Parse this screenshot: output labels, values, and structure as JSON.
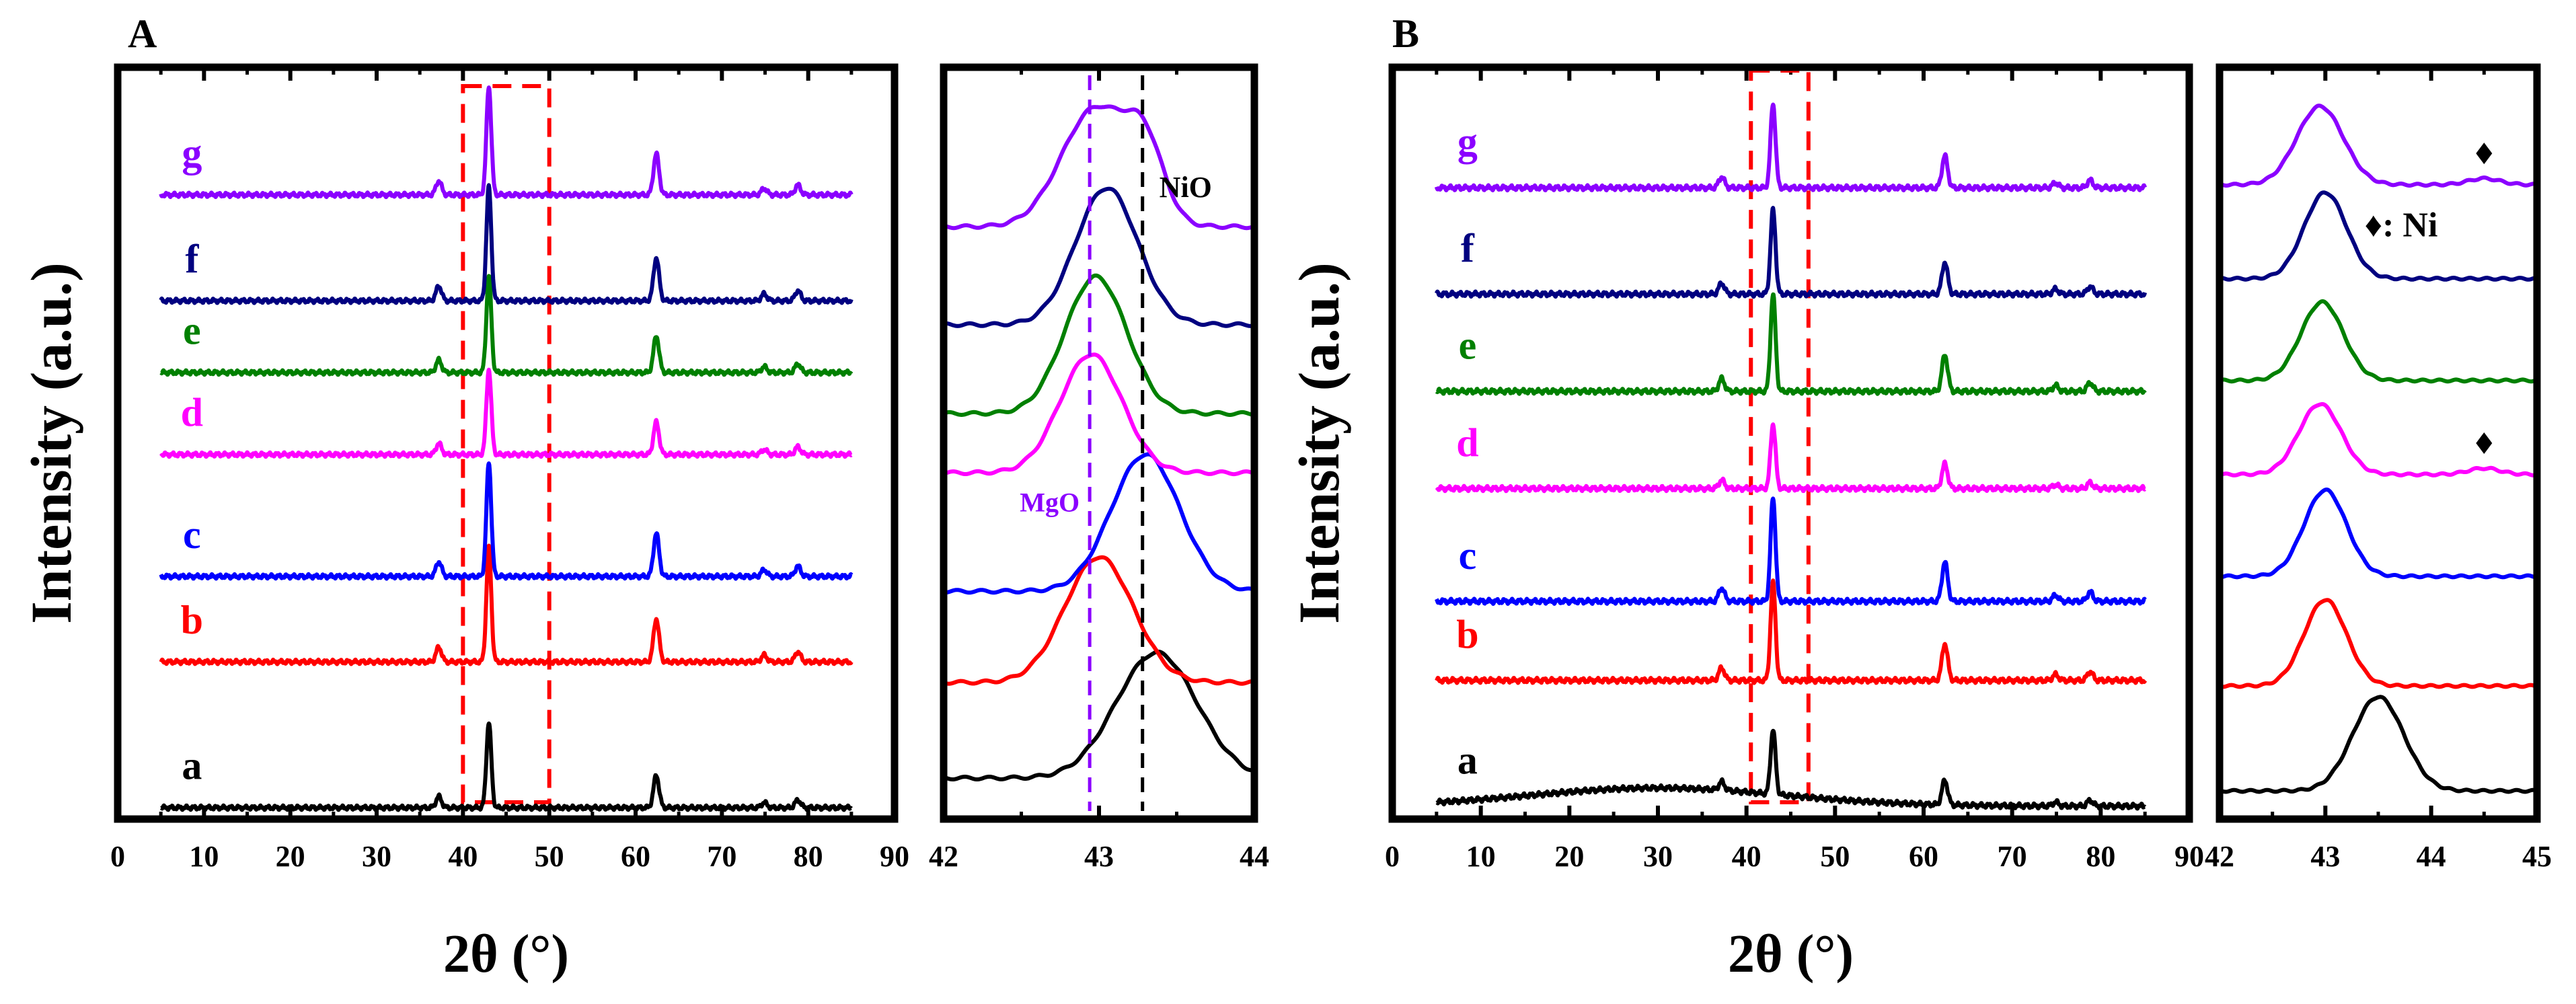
{
  "chart_data": [
    {
      "id": "A-main",
      "type": "line",
      "panel_label": "A",
      "xlabel": "2θ (°)",
      "ylabel": "Intensity (a.u.)",
      "xlim": [
        0,
        90
      ],
      "xticks": [
        0,
        10,
        20,
        30,
        40,
        50,
        60,
        70,
        80,
        90
      ],
      "x_range": [
        5,
        85
      ],
      "peaks": [
        [
          37.2,
          0.13
        ],
        [
          43.0,
          1.0
        ],
        [
          62.4,
          0.38
        ],
        [
          74.9,
          0.06
        ],
        [
          78.8,
          0.09
        ]
      ],
      "highlight_range": [
        40,
        50
      ],
      "series": [
        {
          "name": "a",
          "color": "#000000",
          "baseline": 0.1,
          "height": 0.75
        },
        {
          "name": "b",
          "color": "#ff0000",
          "baseline": 1.38,
          "height": 1.0
        },
        {
          "name": "c",
          "color": "#0000ff",
          "baseline": 2.13,
          "height": 1.0
        },
        {
          "name": "d",
          "color": "#ff00ff",
          "baseline": 3.2,
          "height": 0.75
        },
        {
          "name": "e",
          "color": "#008000",
          "baseline": 3.92,
          "height": 0.85
        },
        {
          "name": "f",
          "color": "#000080",
          "baseline": 4.55,
          "height": 1.0
        },
        {
          "name": "g",
          "color": "#8b00ff",
          "baseline": 5.48,
          "height": 0.95
        }
      ]
    },
    {
      "id": "A-zoom",
      "type": "line",
      "xlim": [
        42,
        44
      ],
      "xticks": [
        42,
        43,
        44
      ],
      "reference_lines": [
        {
          "label": "MgO",
          "x": 42.94,
          "color": "#8b00ff"
        },
        {
          "label": "NiO",
          "x": 43.28,
          "color": "#000000"
        }
      ],
      "series": [
        {
          "name": "a",
          "color": "#000000",
          "peak": 43.37,
          "width": 0.26,
          "baseline": 0.18,
          "height": 0.55
        },
        {
          "name": "b",
          "color": "#ff0000",
          "peak": 43.0,
          "width": 0.22,
          "baseline": 0.6,
          "height": 0.55
        },
        {
          "name": "c",
          "color": "#0000ff",
          "peak": 43.3,
          "width": 0.22,
          "baseline": 1.0,
          "height": 0.6
        },
        {
          "name": "d",
          "color": "#ff00ff",
          "peak": 42.95,
          "width": 0.2,
          "baseline": 1.52,
          "height": 0.52
        },
        {
          "name": "e",
          "color": "#008000",
          "peak": 42.98,
          "width": 0.2,
          "baseline": 1.78,
          "height": 0.6
        },
        {
          "name": "f",
          "color": "#000080",
          "peak": 43.05,
          "width": 0.2,
          "baseline": 2.17,
          "height": 0.6
        },
        {
          "name": "g",
          "color": "#8b00ff",
          "peak": 42.98,
          "width": 0.22,
          "baseline": 2.6,
          "height": 0.52
        }
      ]
    },
    {
      "id": "B-main",
      "type": "line",
      "panel_label": "B",
      "xlabel": "2θ (°)",
      "ylabel": "Intensity (a.u.)",
      "xlim": [
        0,
        90
      ],
      "xticks": [
        0,
        10,
        20,
        30,
        40,
        50,
        60,
        70,
        80,
        90
      ],
      "x_range": [
        5,
        85
      ],
      "peaks": [
        [
          37.2,
          0.13
        ],
        [
          43.0,
          1.0
        ],
        [
          62.4,
          0.38
        ],
        [
          74.9,
          0.06
        ],
        [
          78.8,
          0.09
        ]
      ],
      "highlight_range": [
        40.5,
        47
      ],
      "series": [
        {
          "name": "a",
          "color": "#000000",
          "baseline": 0.1,
          "height": 0.5
        },
        {
          "name": "b",
          "color": "#ff0000",
          "baseline": 1.07,
          "height": 0.75
        },
        {
          "name": "c",
          "color": "#0000ff",
          "baseline": 1.68,
          "height": 0.8
        },
        {
          "name": "d",
          "color": "#ff00ff",
          "baseline": 2.55,
          "height": 0.5
        },
        {
          "name": "e",
          "color": "#008000",
          "baseline": 3.3,
          "height": 0.75
        },
        {
          "name": "f",
          "color": "#000080",
          "baseline": 4.05,
          "height": 0.65
        },
        {
          "name": "g",
          "color": "#8b00ff",
          "baseline": 4.87,
          "height": 0.65
        }
      ]
    },
    {
      "id": "B-zoom",
      "type": "line",
      "xlim": [
        42,
        45
      ],
      "xticks": [
        42,
        43,
        44,
        45
      ],
      "legend_text": "♦: Ni",
      "series": [
        {
          "name": "a",
          "color": "#000000",
          "peak": 43.5,
          "width": 0.24,
          "baseline": 0.18,
          "height": 0.6,
          "ni_marker": false
        },
        {
          "name": "b",
          "color": "#ff0000",
          "peak": 43.0,
          "width": 0.2,
          "baseline": 0.85,
          "height": 0.55,
          "ni_marker": false
        },
        {
          "name": "c",
          "color": "#0000ff",
          "peak": 43.0,
          "width": 0.2,
          "baseline": 1.55,
          "height": 0.55,
          "ni_marker": false
        },
        {
          "name": "d",
          "color": "#ff00ff",
          "peak": 42.95,
          "width": 0.2,
          "baseline": 2.2,
          "height": 0.45,
          "ni_marker": true
        },
        {
          "name": "e",
          "color": "#008000",
          "peak": 42.97,
          "width": 0.2,
          "baseline": 2.8,
          "height": 0.5,
          "ni_marker": false
        },
        {
          "name": "f",
          "color": "#000080",
          "peak": 43.0,
          "width": 0.2,
          "baseline": 3.45,
          "height": 0.55,
          "ni_marker": false
        },
        {
          "name": "g",
          "color": "#8b00ff",
          "peak": 42.95,
          "width": 0.22,
          "baseline": 4.05,
          "height": 0.5,
          "ni_marker": true
        }
      ]
    }
  ]
}
